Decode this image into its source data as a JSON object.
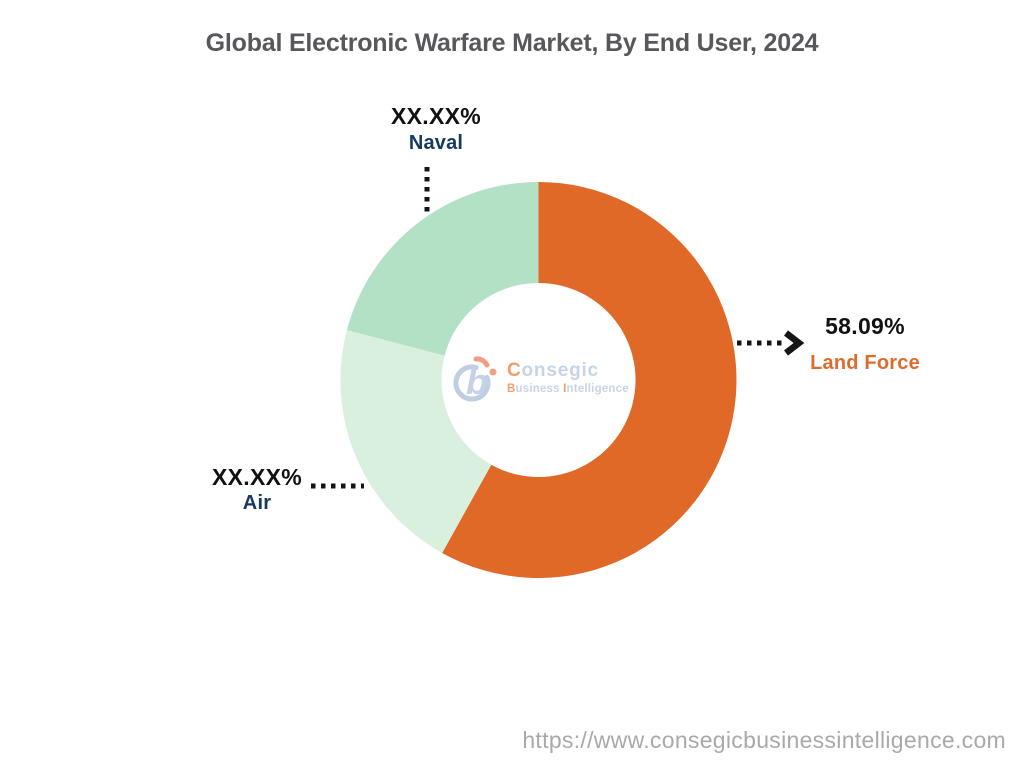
{
  "title": "Global Electronic Warfare Market, By End User, 2024",
  "footer": {
    "url": "https://www.consegicbusinessintelligence.com"
  },
  "watermark": {
    "brand": "Consegic",
    "tagline": "Business Intelligence"
  },
  "colors": {
    "land_force": "#E06928",
    "air": "#D9F0DF",
    "naval": "#B3E1C5",
    "callout_navy": "#16395F",
    "callout_orange": "#DD6B2F",
    "title_gray": "#57585B",
    "url_gray": "#A9A9A9",
    "leader_black": "#151515",
    "logo_blue": "#C7D4E7",
    "logo_orange": "#F09E6E"
  },
  "chart_data": {
    "type": "pie",
    "subtype": "donut",
    "title": "Global Electronic Warfare Market, By End User, 2024",
    "unit": "%",
    "direction": "clockwise",
    "start_angle_deg": 0,
    "inner_radius_ratio": 0.49,
    "legend_position": "callouts",
    "segments": [
      {
        "name": "Land Force",
        "display_value": "58.09%",
        "value_pct": 58.09,
        "value_masked": false,
        "color": "#E06928",
        "callout_side": "right"
      },
      {
        "name": "Air",
        "display_value": "XX.XX%",
        "value_pct": 20.96,
        "value_masked": true,
        "value_pct_estimated": true,
        "color": "#D9F0DF",
        "callout_side": "left"
      },
      {
        "name": "Naval",
        "display_value": "XX.XX%",
        "value_pct": 20.95,
        "value_masked": true,
        "value_pct_estimated": true,
        "color": "#B3E1C5",
        "callout_side": "top"
      }
    ]
  }
}
